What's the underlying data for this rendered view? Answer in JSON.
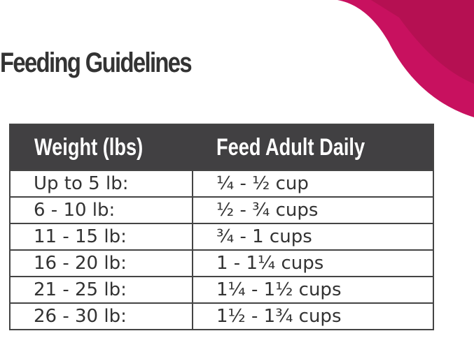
{
  "title": "Feeding Guidelines",
  "table": {
    "headers": [
      "Weight (lbs)",
      "Feed Adult Daily"
    ],
    "rows": [
      [
        "Up to 5 lb:",
        "¼ - ½ cup"
      ],
      [
        "6 - 10 lb:",
        "½ - ¾ cups"
      ],
      [
        "11 - 15 lb:",
        "¾ - 1 cups"
      ],
      [
        "16 - 20 lb:",
        "1 - 1¼ cups"
      ],
      [
        "21 - 25 lb:",
        "1¼ - 1½ cups"
      ],
      [
        "26 - 30 lb:",
        "1½ - 1¾ cups"
      ]
    ]
  }
}
